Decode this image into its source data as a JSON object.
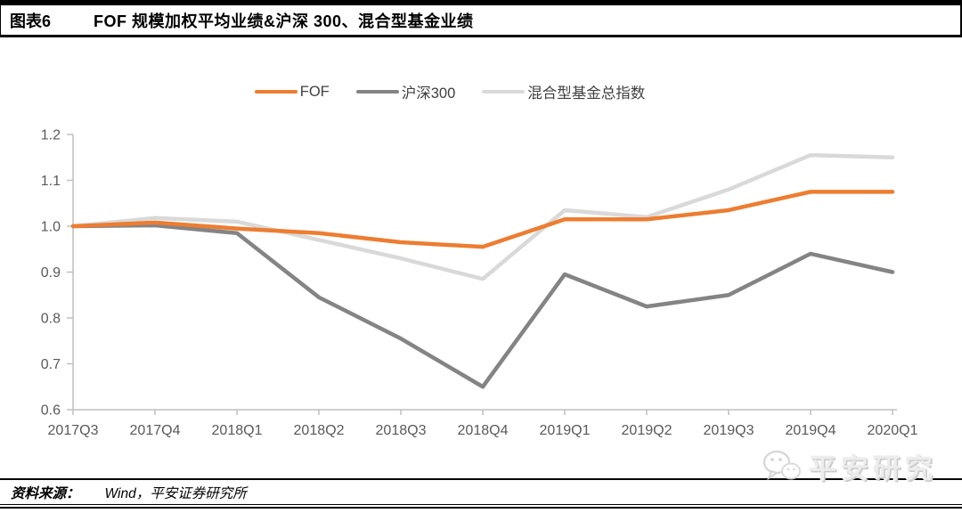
{
  "figure": {
    "label": "图表6",
    "title": "FOF 规模加权平均业绩&沪深 300、混合型基金业绩"
  },
  "source": {
    "label": "资料来源：",
    "text": "Wind，平安证券研究所"
  },
  "watermark": {
    "icon": "wechat-icon",
    "text": "平安研究"
  },
  "colors": {
    "fof_orange": "#ED7D31",
    "hs300_gray": "#848484",
    "hybrid_lightgray": "#D9D9D9",
    "axis": "#BFBFBF",
    "axis_text": "#595959",
    "rule": "#000000"
  },
  "chart_data": {
    "type": "line",
    "title": "FOF 规模加权平均业绩&沪深 300、混合型基金业绩",
    "xlabel": "",
    "ylabel": "",
    "grid": false,
    "legend_position": "top",
    "ylim": [
      0.6,
      1.2
    ],
    "y_ticks": [
      1.2,
      1.1,
      1.0,
      0.9,
      0.8,
      0.7,
      0.6
    ],
    "categories": [
      "2017Q3",
      "2017Q4",
      "2018Q1",
      "2018Q2",
      "2018Q3",
      "2018Q4",
      "2019Q1",
      "2019Q2",
      "2019Q3",
      "2019Q4",
      "2020Q1"
    ],
    "series": [
      {
        "name": "FOF",
        "color": "#ED7D31",
        "values": [
          1.0,
          1.008,
          0.995,
          0.985,
          0.965,
          0.955,
          1.015,
          1.015,
          1.035,
          1.075,
          1.075
        ]
      },
      {
        "name": "沪深300",
        "color": "#848484",
        "values": [
          1.0,
          1.002,
          0.985,
          0.845,
          0.755,
          0.65,
          0.895,
          0.825,
          0.85,
          0.94,
          0.9
        ]
      },
      {
        "name": "混合型基金总指数",
        "color": "#D9D9D9",
        "values": [
          1.0,
          1.018,
          1.01,
          0.97,
          0.93,
          0.885,
          1.035,
          1.02,
          1.08,
          1.155,
          1.15
        ]
      }
    ]
  }
}
